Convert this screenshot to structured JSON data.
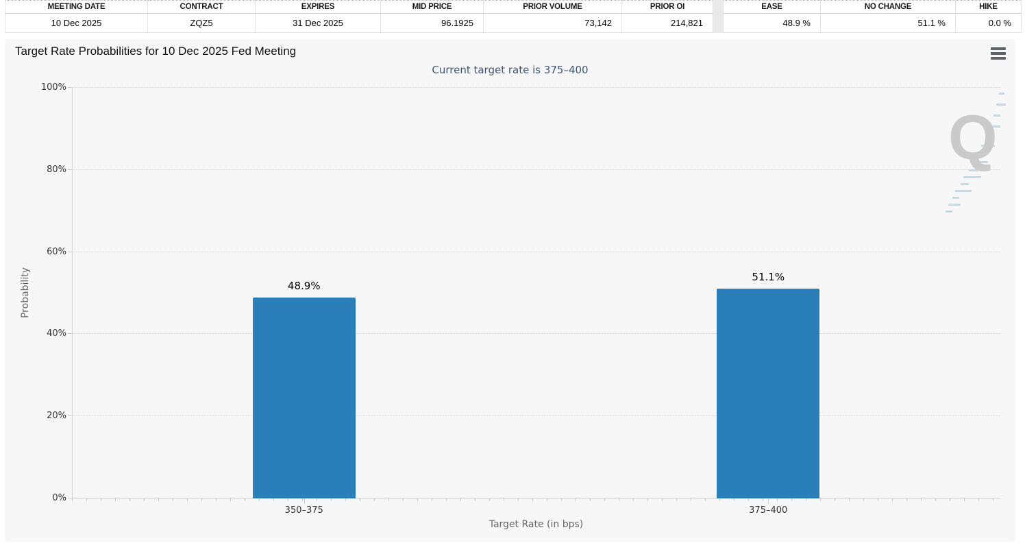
{
  "quote_table": {
    "headers": [
      "MEETING DATE",
      "CONTRACT",
      "EXPIRES",
      "MID PRICE",
      "PRIOR VOLUME",
      "PRIOR OI"
    ],
    "values": [
      "10 Dec 2025",
      "ZQZ5",
      "31 Dec 2025",
      "96.1925",
      "73,142",
      "214,821"
    ]
  },
  "probability_table": {
    "headers": [
      "EASE",
      "NO CHANGE",
      "HIKE"
    ],
    "values": [
      "48.9 %",
      "51.1 %",
      "0.0 %"
    ]
  },
  "watermark": {
    "letter": "Q"
  },
  "icons": {
    "context_menu": "hamburger-icon"
  },
  "chart_data": {
    "type": "bar",
    "title": "Target Rate Probabilities for 10 Dec 2025 Fed Meeting",
    "subtitle": "Current target rate is 375–400",
    "categories": [
      "350–375",
      "375–400"
    ],
    "values": [
      48.9,
      51.1
    ],
    "value_labels": [
      "48.9%",
      "51.1%"
    ],
    "xlabel": "Target Rate (in bps)",
    "ylabel": "Probability",
    "ylim": [
      0,
      100
    ],
    "ytick_labels": [
      "0%",
      "20%",
      "40%",
      "60%",
      "80%",
      "100%"
    ],
    "grid": "horizontal-dotted",
    "legend": "none",
    "bar_color": "#2b7fb8"
  }
}
